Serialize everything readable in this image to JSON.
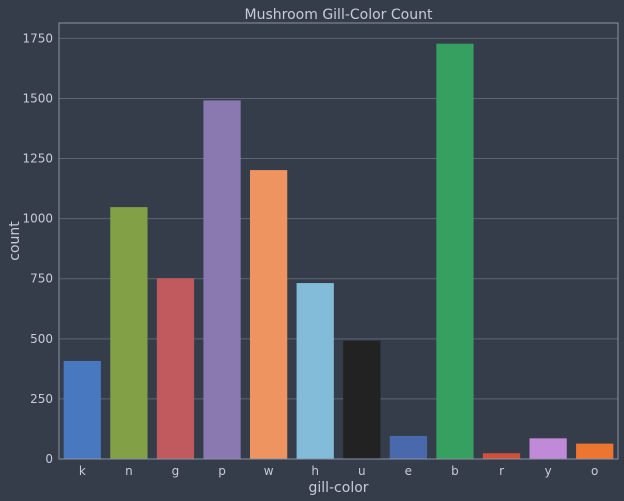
{
  "chart_data": {
    "type": "bar",
    "title": "Mushroom Gill-Color Count",
    "xlabel": "gill-color",
    "ylabel": "count",
    "categories": [
      "k",
      "n",
      "g",
      "p",
      "w",
      "h",
      "u",
      "e",
      "b",
      "r",
      "y",
      "o"
    ],
    "values": [
      408,
      1048,
      752,
      1492,
      1202,
      732,
      492,
      96,
      1728,
      24,
      86,
      64
    ],
    "colors": [
      "#4878c0",
      "#82a045",
      "#c05a5e",
      "#8a78b0",
      "#ed9460",
      "#82bcd8",
      "#222222",
      "#4a68ac",
      "#35a060",
      "#d0503c",
      "#c08ad8",
      "#ed7530"
    ],
    "ylim": [
      0,
      1814
    ],
    "yticks": [
      "0",
      "250",
      "500",
      "750",
      "1000",
      "1250",
      "1500",
      "1750"
    ],
    "grid": true,
    "style": {
      "background": "#353c4a",
      "gridColor": "#5c6676",
      "frameColor": "#8c94a6",
      "textColor": "#c8ccd6"
    }
  }
}
